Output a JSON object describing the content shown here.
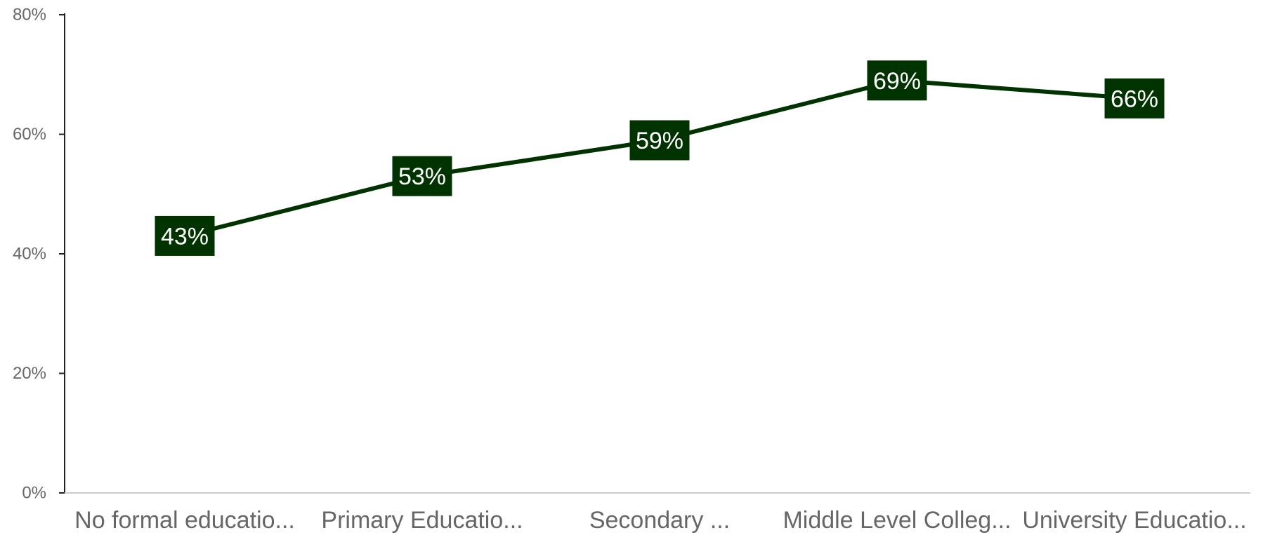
{
  "chart_data": {
    "type": "line",
    "title": "",
    "xlabel": "",
    "ylabel": "",
    "categories": [
      "No formal educatio...",
      "Primary Educatio...",
      "Secondary ...",
      "Middle Level Colleg...",
      "University Educatio..."
    ],
    "series": [
      {
        "values": [
          43,
          53,
          59,
          69,
          66
        ],
        "labels": [
          "43%",
          "53%",
          "59%",
          "69%",
          "66%"
        ],
        "color": "#003300"
      }
    ],
    "ylim": [
      0,
      80
    ],
    "yticks": [
      0,
      20,
      40,
      60,
      80
    ],
    "ytick_labels": [
      "0%",
      "20%",
      "40%",
      "60%",
      "80%"
    ],
    "grid": false,
    "legend": "none",
    "colors": {
      "line": "#003300",
      "label_bg": "#003300",
      "label_text": "#ffffff",
      "axis": "#222222",
      "baseline": "#cccccc",
      "tick_text": "#666666"
    }
  }
}
